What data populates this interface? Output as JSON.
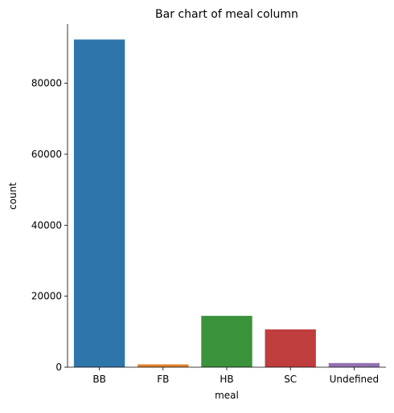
{
  "chart_data": {
    "type": "bar",
    "title": "Bar chart of meal column",
    "xlabel": "meal",
    "ylabel": "count",
    "categories": [
      "BB",
      "FB",
      "HB",
      "SC",
      "Undefined"
    ],
    "values": [
      92310,
      798,
      14463,
      10650,
      1169
    ],
    "colors": [
      "#2e75ab",
      "#e1812c",
      "#3a923a",
      "#c03d3e",
      "#9372b2"
    ],
    "ylim": [
      0,
      96658
    ],
    "yticks": [
      0,
      20000,
      40000,
      60000,
      80000
    ],
    "ytick_labels": [
      "0",
      "20000",
      "40000",
      "60000",
      "80000"
    ],
    "grid": false,
    "spines": [
      "left",
      "bottom"
    ]
  }
}
